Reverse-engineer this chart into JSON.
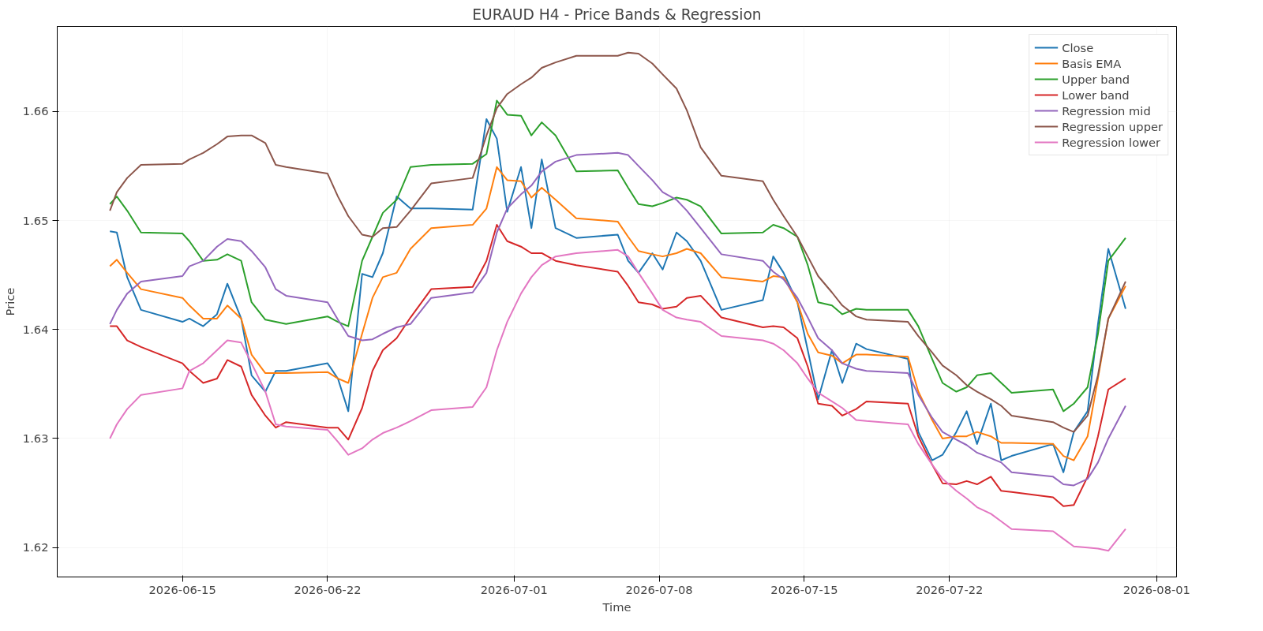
{
  "chart_data": {
    "type": "line",
    "title": "EURAUD H4 - Price Bands & Regression",
    "xlabel": "Time",
    "ylabel": "Price",
    "x": [
      "2026-06-11T12:00",
      "2026-06-11T20:00",
      "2026-06-12T08:00",
      "2026-06-13T00:00",
      "2026-06-15T00:00",
      "2026-06-15T08:00",
      "2026-06-16T00:00",
      "2026-06-16T16:00",
      "2026-06-17T04:00",
      "2026-06-17T20:00",
      "2026-06-18T08:00",
      "2026-06-19T00:00",
      "2026-06-19T12:00",
      "2026-06-20T00:00",
      "2026-06-22T00:00",
      "2026-06-22T12:00",
      "2026-06-23T00:00",
      "2026-06-23T16:00",
      "2026-06-24T04:00",
      "2026-06-24T16:00",
      "2026-06-25T08:00",
      "2026-06-26T00:00",
      "2026-06-27T00:00",
      "2026-06-29T00:00",
      "2026-06-29T16:00",
      "2026-06-30T04:00",
      "2026-06-30T16:00",
      "2026-07-01T08:00",
      "2026-07-01T20:00",
      "2026-07-02T08:00",
      "2026-07-03T00:00",
      "2026-07-04T00:00",
      "2026-07-06T00:00",
      "2026-07-06T12:00",
      "2026-07-07T00:00",
      "2026-07-07T16:00",
      "2026-07-08T04:00",
      "2026-07-08T20:00",
      "2026-07-09T08:00",
      "2026-07-10T00:00",
      "2026-07-11T00:00",
      "2026-07-13T00:00",
      "2026-07-13T12:00",
      "2026-07-14T00:00",
      "2026-07-14T16:00",
      "2026-07-15T04:00",
      "2026-07-15T16:00",
      "2026-07-16T08:00",
      "2026-07-16T20:00",
      "2026-07-17T12:00",
      "2026-07-18T00:00",
      "2026-07-20T00:00",
      "2026-07-20T12:00",
      "2026-07-21T04:00",
      "2026-07-21T16:00",
      "2026-07-22T08:00",
      "2026-07-22T20:00",
      "2026-07-23T08:00",
      "2026-07-24T00:00",
      "2026-07-24T12:00",
      "2026-07-25T00:00",
      "2026-07-27T00:00",
      "2026-07-27T12:00",
      "2026-07-28T00:00",
      "2026-07-28T16:00",
      "2026-07-29T04:00",
      "2026-07-29T16:00",
      "2026-07-30T12:00"
    ],
    "series": [
      {
        "name": "Close",
        "color": "#1f77b4",
        "values": [
          1.649,
          1.6489,
          1.6448,
          1.6418,
          1.6407,
          1.641,
          1.6403,
          1.6414,
          1.6442,
          1.641,
          1.6358,
          1.6343,
          1.6362,
          1.6362,
          1.6369,
          1.6355,
          1.6325,
          1.6451,
          1.6448,
          1.647,
          1.6522,
          1.6511,
          1.6511,
          1.651,
          1.6593,
          1.6575,
          1.6508,
          1.6549,
          1.6493,
          1.6556,
          1.6493,
          1.6484,
          1.6487,
          1.6463,
          1.6452,
          1.647,
          1.6455,
          1.6489,
          1.6481,
          1.6463,
          1.6418,
          1.6427,
          1.6467,
          1.6452,
          1.6425,
          1.6381,
          1.6336,
          1.6381,
          1.6351,
          1.6387,
          1.6382,
          1.6373,
          1.6306,
          1.628,
          1.6285,
          1.6306,
          1.6325,
          1.6295,
          1.6332,
          1.628,
          1.6284,
          1.6295,
          1.6269,
          1.6306,
          1.6325,
          1.6405,
          1.6474,
          1.6419
        ]
      },
      {
        "name": "Basis EMA",
        "color": "#ff7f0e",
        "values": [
          1.6458,
          1.6464,
          1.6452,
          1.6437,
          1.6429,
          1.6422,
          1.641,
          1.641,
          1.6422,
          1.641,
          1.6377,
          1.636,
          1.636,
          1.636,
          1.6361,
          1.6355,
          1.6351,
          1.6396,
          1.6429,
          1.6448,
          1.6452,
          1.6474,
          1.6493,
          1.6496,
          1.6511,
          1.6549,
          1.6537,
          1.6536,
          1.6521,
          1.653,
          1.6519,
          1.6502,
          1.6499,
          1.6485,
          1.6472,
          1.6469,
          1.6467,
          1.647,
          1.6474,
          1.647,
          1.6448,
          1.6444,
          1.6449,
          1.6448,
          1.6425,
          1.6396,
          1.6379,
          1.6376,
          1.6369,
          1.6377,
          1.6377,
          1.6375,
          1.6343,
          1.6317,
          1.63,
          1.6302,
          1.6302,
          1.6306,
          1.6302,
          1.6296,
          1.6296,
          1.6295,
          1.6284,
          1.628,
          1.6302,
          1.6355,
          1.641,
          1.644
        ]
      },
      {
        "name": "Upper band",
        "color": "#2ca02c",
        "values": [
          1.6515,
          1.6522,
          1.6509,
          1.6489,
          1.6488,
          1.6481,
          1.6463,
          1.6464,
          1.6469,
          1.6463,
          1.6425,
          1.6409,
          1.6407,
          1.6405,
          1.6412,
          1.6407,
          1.6403,
          1.6463,
          1.6485,
          1.6507,
          1.6519,
          1.6549,
          1.6551,
          1.6552,
          1.6561,
          1.661,
          1.6597,
          1.6596,
          1.6578,
          1.659,
          1.6578,
          1.6545,
          1.6546,
          1.653,
          1.6515,
          1.6513,
          1.6516,
          1.6521,
          1.6519,
          1.6513,
          1.6488,
          1.6489,
          1.6496,
          1.6493,
          1.6485,
          1.6459,
          1.6425,
          1.6422,
          1.6414,
          1.6419,
          1.6418,
          1.6418,
          1.6403,
          1.6373,
          1.6351,
          1.6343,
          1.6347,
          1.6358,
          1.636,
          1.6351,
          1.6342,
          1.6345,
          1.6325,
          1.6332,
          1.6347,
          1.6396,
          1.6463,
          1.6484
        ]
      },
      {
        "name": "Lower band",
        "color": "#d62728",
        "values": [
          1.6403,
          1.6403,
          1.639,
          1.6384,
          1.6369,
          1.6362,
          1.6351,
          1.6355,
          1.6372,
          1.6366,
          1.634,
          1.6321,
          1.631,
          1.6315,
          1.631,
          1.631,
          1.6299,
          1.6328,
          1.6362,
          1.6381,
          1.6392,
          1.6411,
          1.6437,
          1.6439,
          1.6463,
          1.6496,
          1.6481,
          1.6476,
          1.647,
          1.647,
          1.6463,
          1.6459,
          1.6453,
          1.644,
          1.6425,
          1.6423,
          1.6419,
          1.6421,
          1.6429,
          1.6431,
          1.6411,
          1.6402,
          1.6403,
          1.6402,
          1.6392,
          1.6366,
          1.6332,
          1.633,
          1.6321,
          1.6327,
          1.6334,
          1.6332,
          1.6302,
          1.6276,
          1.6259,
          1.6258,
          1.6261,
          1.6258,
          1.6265,
          1.6252,
          1.6251,
          1.6246,
          1.6238,
          1.6239,
          1.6265,
          1.6302,
          1.6345,
          1.6355
        ]
      },
      {
        "name": "Regression mid",
        "color": "#9467bd",
        "values": [
          1.6405,
          1.6418,
          1.6433,
          1.6444,
          1.6449,
          1.6458,
          1.6463,
          1.6476,
          1.6483,
          1.6481,
          1.6472,
          1.6457,
          1.6437,
          1.6431,
          1.6425,
          1.6409,
          1.6394,
          1.639,
          1.6391,
          1.6396,
          1.6402,
          1.6405,
          1.6429,
          1.6434,
          1.6452,
          1.6489,
          1.6511,
          1.6524,
          1.6532,
          1.6545,
          1.6554,
          1.656,
          1.6562,
          1.656,
          1.655,
          1.6537,
          1.6526,
          1.6519,
          1.6509,
          1.6493,
          1.6469,
          1.6463,
          1.6453,
          1.6446,
          1.6429,
          1.6411,
          1.6392,
          1.6381,
          1.6369,
          1.6364,
          1.6362,
          1.636,
          1.634,
          1.6319,
          1.6306,
          1.6299,
          1.6294,
          1.6287,
          1.6282,
          1.6278,
          1.6269,
          1.6265,
          1.6258,
          1.6257,
          1.6263,
          1.6278,
          1.63,
          1.633
        ]
      },
      {
        "name": "Regression upper",
        "color": "#8c564b",
        "values": [
          1.6509,
          1.6526,
          1.6539,
          1.6551,
          1.6552,
          1.6556,
          1.6562,
          1.657,
          1.6577,
          1.6578,
          1.6578,
          1.6571,
          1.6551,
          1.6549,
          1.6543,
          1.6522,
          1.6504,
          1.6487,
          1.6485,
          1.6493,
          1.6494,
          1.6509,
          1.6534,
          1.6539,
          1.6578,
          1.6603,
          1.6616,
          1.6625,
          1.6631,
          1.664,
          1.6645,
          1.6651,
          1.6651,
          1.6654,
          1.6653,
          1.6644,
          1.6634,
          1.6621,
          1.6601,
          1.6567,
          1.6541,
          1.6536,
          1.6519,
          1.6504,
          1.6485,
          1.6467,
          1.6449,
          1.6434,
          1.6422,
          1.6412,
          1.6409,
          1.6407,
          1.6394,
          1.6379,
          1.6367,
          1.6358,
          1.6349,
          1.6343,
          1.6336,
          1.633,
          1.6321,
          1.6315,
          1.631,
          1.6306,
          1.6321,
          1.6358,
          1.641,
          1.6444
        ]
      },
      {
        "name": "Regression lower",
        "color": "#e377c2",
        "values": [
          1.63,
          1.6313,
          1.6327,
          1.634,
          1.6346,
          1.6362,
          1.6369,
          1.6381,
          1.639,
          1.6388,
          1.6369,
          1.6343,
          1.6313,
          1.6311,
          1.6308,
          1.6297,
          1.6285,
          1.6291,
          1.6299,
          1.6305,
          1.631,
          1.6316,
          1.6326,
          1.6329,
          1.6347,
          1.6381,
          1.6407,
          1.6433,
          1.6448,
          1.6459,
          1.6467,
          1.647,
          1.6473,
          1.6467,
          1.6452,
          1.6433,
          1.6418,
          1.6411,
          1.6409,
          1.6407,
          1.6394,
          1.639,
          1.6387,
          1.6381,
          1.6369,
          1.6355,
          1.6342,
          1.6334,
          1.6328,
          1.6317,
          1.6316,
          1.6313,
          1.6295,
          1.6276,
          1.6263,
          1.6252,
          1.6245,
          1.6237,
          1.6231,
          1.6224,
          1.6217,
          1.6215,
          1.6208,
          1.6201,
          1.62,
          1.6199,
          1.6197,
          1.6217
        ]
      }
    ],
    "xlim": [
      "2026-06-08T23:00",
      "2026-08-01T23:00"
    ],
    "xticks": [
      "2026-06-15",
      "2026-06-22",
      "2026-07-01",
      "2026-07-08",
      "2026-07-15",
      "2026-07-22",
      "2026-08-01"
    ],
    "ylim": [
      1.6173,
      1.6678
    ],
    "yticks": [
      1.62,
      1.63,
      1.64,
      1.65,
      1.66
    ],
    "grid": true,
    "legend": "top right",
    "line_style": "solid",
    "marker": "none"
  }
}
